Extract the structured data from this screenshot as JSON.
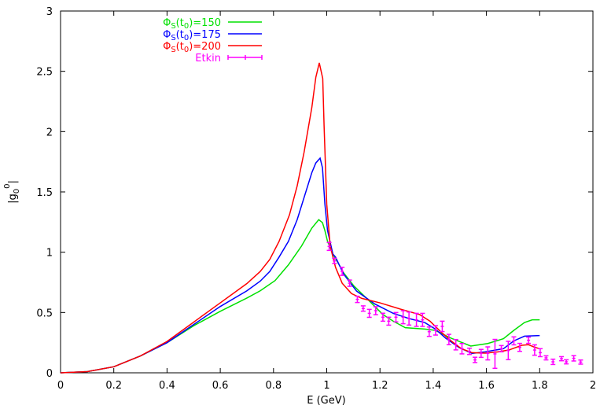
{
  "chart_data": {
    "type": "line",
    "title": "",
    "xlabel": "E (GeV)",
    "ylabel": "|g0^0|",
    "ylabel_parts": {
      "base": "|g",
      "sub": "0",
      "sup": "0",
      "end": "|"
    },
    "xlim": [
      0,
      2
    ],
    "ylim": [
      0,
      3
    ],
    "xticks": [
      "0",
      "0.2",
      "0.4",
      "0.6",
      "0.8",
      "1",
      "1.2",
      "1.4",
      "1.6",
      "1.8",
      "2"
    ],
    "yticks": [
      "0",
      "0.5",
      "1",
      "1.5",
      "2",
      "2.5",
      "3"
    ],
    "grid": false,
    "legend_position": "top-left",
    "series": [
      {
        "name": "ΦS(t0)=150",
        "legend": {
          "phi": "Φ",
          "s": "S",
          "open": "(t",
          "zero": "0",
          "close": ")=150"
        },
        "color": "#00e000",
        "points": [
          [
            0,
            0
          ],
          [
            0.1,
            0.01
          ],
          [
            0.2,
            0.05
          ],
          [
            0.3,
            0.14
          ],
          [
            0.4,
            0.25
          ],
          [
            0.5,
            0.39
          ],
          [
            0.6,
            0.51
          ],
          [
            0.7,
            0.62
          ],
          [
            0.75,
            0.68
          ],
          [
            0.806,
            0.765
          ],
          [
            0.856,
            0.895
          ],
          [
            0.905,
            1.05
          ],
          [
            0.944,
            1.2
          ],
          [
            0.97,
            1.27
          ],
          [
            0.984,
            1.245
          ],
          [
            0.993,
            1.18
          ],
          [
            1.003,
            1.09
          ],
          [
            1.023,
            0.985
          ],
          [
            1.052,
            0.875
          ],
          [
            1.063,
            0.83
          ],
          [
            1.102,
            0.72
          ],
          [
            1.152,
            0.613
          ],
          [
            1.211,
            0.483
          ],
          [
            1.25,
            0.428
          ],
          [
            1.295,
            0.374
          ],
          [
            1.368,
            0.363
          ],
          [
            1.408,
            0.352
          ],
          [
            1.467,
            0.287
          ],
          [
            1.541,
            0.222
          ],
          [
            1.605,
            0.243
          ],
          [
            1.664,
            0.283
          ],
          [
            1.703,
            0.352
          ],
          [
            1.743,
            0.417
          ],
          [
            1.772,
            0.439
          ],
          [
            1.8,
            0.439
          ]
        ]
      },
      {
        "name": "ΦS(t0)=175",
        "legend": {
          "phi": "Φ",
          "s": "S",
          "open": "(t",
          "zero": "0",
          "close": ")=175"
        },
        "color": "#0000ff",
        "points": [
          [
            0,
            0
          ],
          [
            0.1,
            0.01
          ],
          [
            0.2,
            0.05
          ],
          [
            0.3,
            0.14
          ],
          [
            0.4,
            0.25
          ],
          [
            0.5,
            0.4
          ],
          [
            0.6,
            0.55
          ],
          [
            0.7,
            0.68
          ],
          [
            0.75,
            0.76
          ],
          [
            0.786,
            0.84
          ],
          [
            0.821,
            0.96
          ],
          [
            0.856,
            1.09
          ],
          [
            0.889,
            1.27
          ],
          [
            0.944,
            1.66
          ],
          [
            0.959,
            1.74
          ],
          [
            0.975,
            1.78
          ],
          [
            0.984,
            1.7
          ],
          [
            0.993,
            1.4
          ],
          [
            1.003,
            1.18
          ],
          [
            1.023,
            0.985
          ],
          [
            1.033,
            0.96
          ],
          [
            1.063,
            0.82
          ],
          [
            1.112,
            0.678
          ],
          [
            1.181,
            0.57
          ],
          [
            1.25,
            0.493
          ],
          [
            1.309,
            0.45
          ],
          [
            1.368,
            0.417
          ],
          [
            1.408,
            0.363
          ],
          [
            1.447,
            0.287
          ],
          [
            1.497,
            0.21
          ],
          [
            1.546,
            0.161
          ],
          [
            1.595,
            0.174
          ],
          [
            1.664,
            0.2
          ],
          [
            1.703,
            0.265
          ],
          [
            1.743,
            0.304
          ],
          [
            1.8,
            0.309
          ]
        ]
      },
      {
        "name": "ΦS(t0)=200",
        "legend": {
          "phi": "Φ",
          "s": "S",
          "open": "(t",
          "zero": "0",
          "close": ")=200"
        },
        "color": "#ff0000",
        "points": [
          [
            0,
            0
          ],
          [
            0.1,
            0.01
          ],
          [
            0.2,
            0.05
          ],
          [
            0.3,
            0.14
          ],
          [
            0.4,
            0.26
          ],
          [
            0.5,
            0.42
          ],
          [
            0.6,
            0.58
          ],
          [
            0.7,
            0.74
          ],
          [
            0.75,
            0.84
          ],
          [
            0.786,
            0.94
          ],
          [
            0.821,
            1.09
          ],
          [
            0.86,
            1.31
          ],
          [
            0.889,
            1.55
          ],
          [
            0.915,
            1.83
          ],
          [
            0.944,
            2.2
          ],
          [
            0.959,
            2.45
          ],
          [
            0.972,
            2.57
          ],
          [
            0.985,
            2.44
          ],
          [
            0.99,
            2.05
          ],
          [
            1.0,
            1.4
          ],
          [
            1.013,
            1.05
          ],
          [
            1.033,
            0.875
          ],
          [
            1.058,
            0.743
          ],
          [
            1.093,
            0.657
          ],
          [
            1.132,
            0.617
          ],
          [
            1.2,
            0.58
          ],
          [
            1.28,
            0.526
          ],
          [
            1.349,
            0.483
          ],
          [
            1.388,
            0.428
          ],
          [
            1.428,
            0.341
          ],
          [
            1.467,
            0.265
          ],
          [
            1.506,
            0.2
          ],
          [
            1.546,
            0.167
          ],
          [
            1.595,
            0.163
          ],
          [
            1.644,
            0.174
          ],
          [
            1.684,
            0.189
          ],
          [
            1.733,
            0.228
          ],
          [
            1.758,
            0.233
          ],
          [
            1.782,
            0.211
          ],
          [
            1.8,
            0.2
          ]
        ]
      },
      {
        "name": "Etkin",
        "legend": {
          "label": "Etkin"
        },
        "color": "#ff00ff",
        "errorbars": true,
        "points": [
          [
            1.009,
            1.048,
            0.033
          ],
          [
            1.029,
            0.928,
            0.022
          ],
          [
            1.058,
            0.841,
            0.033
          ],
          [
            1.086,
            0.743,
            0.026
          ],
          [
            1.115,
            0.609,
            0.026
          ],
          [
            1.137,
            0.533,
            0.022
          ],
          [
            1.16,
            0.493,
            0.033
          ],
          [
            1.184,
            0.515,
            0.033
          ],
          [
            1.211,
            0.461,
            0.033
          ],
          [
            1.233,
            0.428,
            0.033
          ],
          [
            1.26,
            0.461,
            0.039
          ],
          [
            1.287,
            0.461,
            0.054
          ],
          [
            1.309,
            0.45,
            0.054
          ],
          [
            1.337,
            0.439,
            0.054
          ],
          [
            1.36,
            0.439,
            0.054
          ],
          [
            1.385,
            0.341,
            0.039
          ],
          [
            1.409,
            0.352,
            0.039
          ],
          [
            1.434,
            0.385,
            0.043
          ],
          [
            1.459,
            0.276,
            0.043
          ],
          [
            1.485,
            0.233,
            0.043
          ],
          [
            1.508,
            0.2,
            0.043
          ],
          [
            1.536,
            0.178,
            0.026
          ],
          [
            1.557,
            0.107,
            0.022
          ],
          [
            1.58,
            0.161,
            0.033
          ],
          [
            1.605,
            0.161,
            0.054
          ],
          [
            1.632,
            0.157,
            0.12
          ],
          [
            1.656,
            0.2,
            0.026
          ],
          [
            1.682,
            0.185,
            0.076
          ],
          [
            1.703,
            0.265,
            0.033
          ],
          [
            1.725,
            0.211,
            0.033
          ],
          [
            1.758,
            0.27,
            0.026
          ],
          [
            1.781,
            0.189,
            0.043
          ],
          [
            1.802,
            0.167,
            0.033
          ],
          [
            1.824,
            0.124,
            0.017
          ],
          [
            1.85,
            0.091,
            0.022
          ],
          [
            1.882,
            0.117,
            0.017
          ],
          [
            1.9,
            0.091,
            0.017
          ],
          [
            1.928,
            0.12,
            0.022
          ],
          [
            1.954,
            0.089,
            0.017
          ]
        ]
      }
    ]
  }
}
